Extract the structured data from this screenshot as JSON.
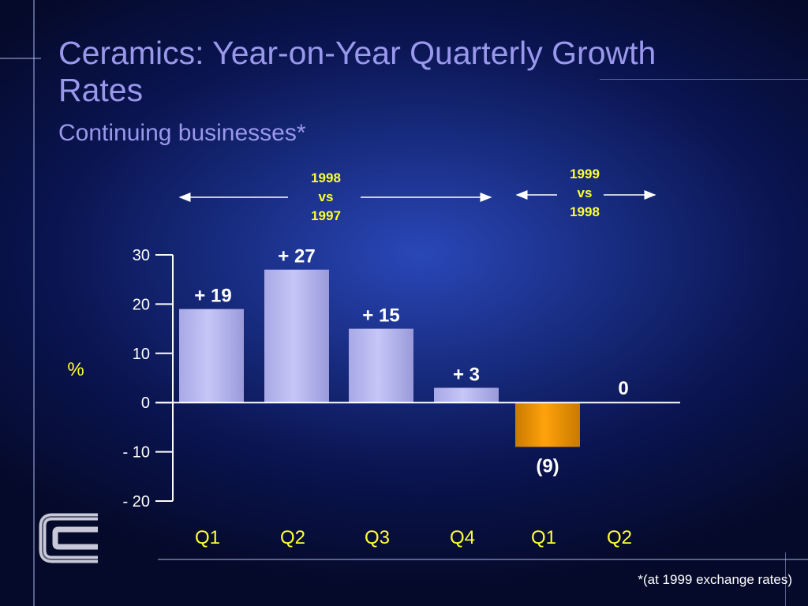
{
  "slide": {
    "title": "Ceramics: Year-on-Year Quarterly Growth Rates",
    "subtitle": "Continuing businesses*",
    "footnote": "*(at 1999 exchange rates)",
    "periods": [
      {
        "label_lines": [
          "1998",
          "vs",
          "1997"
        ]
      },
      {
        "label_lines": [
          "1999",
          "vs",
          "1998"
        ]
      }
    ]
  },
  "colors": {
    "title": "#9a98ec",
    "bar_positive": "#bcbcf4",
    "bar_negative": "#f5a00a",
    "period_label": "#ffff33",
    "quarter_label": "#ffff33",
    "axis": "#ffffff"
  },
  "chart_data": {
    "type": "bar",
    "categories": [
      "Q1",
      "Q2",
      "Q3",
      "Q4",
      "Q1",
      "Q2"
    ],
    "values": [
      19,
      27,
      15,
      3,
      -9,
      0
    ],
    "data_labels": [
      "+ 19",
      "+ 27",
      "+ 15",
      "+ 3",
      "(9)",
      "0"
    ],
    "ylabel": "%",
    "ylim": [
      -20,
      30
    ],
    "yticks": [
      30,
      20,
      10,
      0,
      -10,
      -20
    ],
    "ytick_labels": [
      "30",
      "20",
      "10",
      "0",
      "- 10",
      "- 20"
    ],
    "grid": false
  }
}
